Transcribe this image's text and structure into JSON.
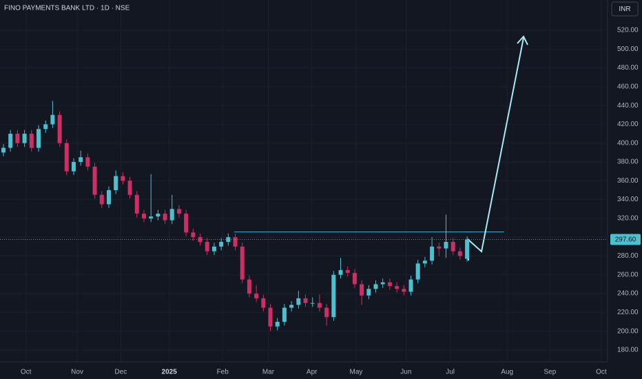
{
  "chart_data": {
    "type": "candlestick",
    "title": "FINO PAYMENTS BANK LTD · 1D · NSE",
    "currency": "INR",
    "up_color": "#4dc0d0",
    "down_color": "#cc2f63",
    "open": [
      390,
      395,
      410,
      400,
      410,
      395,
      415,
      420,
      430,
      400,
      370,
      380,
      385,
      375,
      345,
      335,
      350,
      365,
      360,
      345,
      325,
      320,
      322,
      325,
      318,
      330,
      325,
      305,
      300,
      295,
      285,
      290,
      295,
      300,
      290,
      255,
      240,
      235,
      225,
      205,
      210,
      225,
      228,
      235,
      230,
      230,
      225,
      215,
      260,
      265,
      262,
      250,
      238,
      245,
      250,
      252,
      248,
      245,
      242,
      255,
      272,
      275,
      290,
      288,
      295,
      285,
      277
    ],
    "high": [
      399,
      414,
      414,
      414,
      414,
      419,
      424,
      445,
      434,
      404,
      384,
      392,
      389,
      379,
      349,
      354,
      371,
      369,
      364,
      349,
      329,
      367,
      329,
      329,
      345,
      334,
      329,
      309,
      304,
      299,
      294,
      299,
      304,
      304,
      294,
      259,
      249,
      239,
      229,
      214,
      229,
      232,
      243,
      239,
      236,
      239,
      229,
      264,
      278,
      269,
      266,
      254,
      249,
      254,
      256,
      256,
      252,
      249,
      259,
      276,
      279,
      300,
      294,
      324,
      299,
      289,
      301
    ],
    "low": [
      386,
      391,
      396,
      396,
      391,
      391,
      411,
      416,
      396,
      366,
      366,
      376,
      371,
      341,
      331,
      331,
      346,
      356,
      341,
      321,
      316,
      316,
      318,
      314,
      314,
      321,
      301,
      296,
      291,
      281,
      281,
      286,
      291,
      286,
      251,
      236,
      231,
      221,
      200,
      201,
      206,
      221,
      224,
      226,
      226,
      221,
      206,
      211,
      256,
      258,
      246,
      228,
      234,
      241,
      246,
      244,
      241,
      238,
      238,
      251,
      268,
      271,
      280,
      278,
      281,
      276,
      274
    ],
    "close": [
      395,
      410,
      400,
      410,
      395,
      415,
      420,
      430,
      400,
      370,
      380,
      385,
      375,
      345,
      335,
      350,
      365,
      360,
      345,
      325,
      320,
      322,
      325,
      318,
      330,
      325,
      305,
      300,
      295,
      285,
      290,
      295,
      300,
      290,
      255,
      240,
      235,
      225,
      205,
      210,
      225,
      228,
      235,
      230,
      230,
      225,
      215,
      260,
      265,
      262,
      250,
      238,
      245,
      250,
      252,
      248,
      245,
      242,
      255,
      272,
      275,
      290,
      288,
      295,
      285,
      280,
      297.6
    ],
    "last_price": {
      "value": 297.6,
      "label": "297.60"
    },
    "ylim": [
      167.5,
      552.2
    ],
    "yticks": [
      {
        "value": 180,
        "label": "180.00"
      },
      {
        "value": 200,
        "label": "200.00"
      },
      {
        "value": 220,
        "label": "220.00"
      },
      {
        "value": 240,
        "label": "240.00"
      },
      {
        "value": 260,
        "label": "260.00"
      },
      {
        "value": 280,
        "label": "280.00"
      },
      {
        "value": 300,
        "label": "300.00"
      },
      {
        "value": 320,
        "label": "320.00"
      },
      {
        "value": 340,
        "label": "340.00"
      },
      {
        "value": 360,
        "label": "360.00"
      },
      {
        "value": 380,
        "label": "380.00"
      },
      {
        "value": 400,
        "label": "400.00"
      },
      {
        "value": 420,
        "label": "420.00"
      },
      {
        "value": 440,
        "label": "440.00"
      },
      {
        "value": 460,
        "label": "460.00"
      },
      {
        "value": 480,
        "label": "480.00"
      },
      {
        "value": 500,
        "label": "500.00"
      },
      {
        "value": 520,
        "label": "520.00"
      }
    ],
    "xlim": [
      -0.49,
      85.8
    ],
    "xticks": [
      {
        "value": 3.2,
        "label": "Oct"
      },
      {
        "value": 10.5,
        "label": "Nov"
      },
      {
        "value": 16.7,
        "label": "Dec"
      },
      {
        "value": 23.6,
        "label": "2025"
      },
      {
        "value": 31.2,
        "label": "Feb"
      },
      {
        "value": 37.7,
        "label": "Mar"
      },
      {
        "value": 43.9,
        "label": "Apr"
      },
      {
        "value": 50.2,
        "label": "May"
      },
      {
        "value": 57.3,
        "label": "Jun"
      },
      {
        "value": 63.6,
        "label": "Jul"
      },
      {
        "value": 71.7,
        "label": "Aug"
      },
      {
        "value": 77.8,
        "label": "Sep"
      },
      {
        "value": 85.1,
        "label": "Oct"
      }
    ]
  }
}
